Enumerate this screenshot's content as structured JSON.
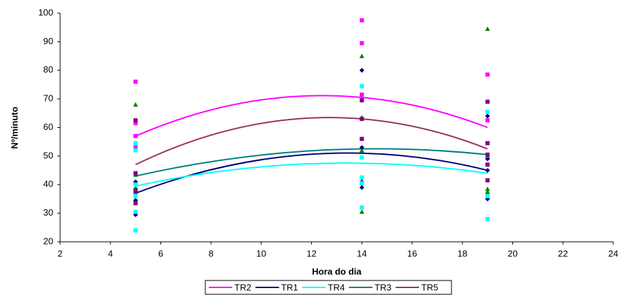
{
  "chart_data": {
    "type": "scatter",
    "x_label": "Hora do dia",
    "y_label": "Nº/minuto",
    "xlim": [
      2,
      24
    ],
    "xticks": [
      2,
      4,
      6,
      8,
      10,
      12,
      14,
      16,
      18,
      20,
      22,
      24
    ],
    "ylim": [
      20,
      100
    ],
    "yticks": [
      20,
      30,
      40,
      50,
      60,
      70,
      80,
      90,
      100
    ],
    "grid": false,
    "legend": "bottom",
    "series": [
      {
        "name": "TR2",
        "color": "#ff00ff",
        "marker": "square",
        "marker_color": "#ff00ff",
        "x": [
          5,
          5,
          5,
          5,
          14,
          14,
          14,
          19,
          19
        ],
        "values": [
          76,
          61.5,
          57,
          53,
          97.5,
          89.5,
          71.5,
          78.5,
          62.5
        ],
        "trend": {
          "x": [
            5,
            14,
            19
          ],
          "values": [
            57,
            70.5,
            60
          ]
        }
      },
      {
        "name": "TR1",
        "color": "#000080",
        "marker": "diamond",
        "marker_color": "#000080",
        "x": [
          5,
          5,
          5,
          5,
          14,
          14,
          14,
          14,
          19,
          19,
          19,
          19
        ],
        "values": [
          41,
          38.5,
          34.5,
          29.5,
          80,
          53,
          41,
          39,
          64,
          49,
          45,
          35
        ],
        "trend": {
          "x": [
            5,
            14,
            19
          ],
          "values": [
            37,
            51,
            45
          ]
        }
      },
      {
        "name": "TR4",
        "color": "#00ffff",
        "marker": "square",
        "marker_color": "#00ffff",
        "x": [
          5,
          5,
          5,
          5,
          5,
          5,
          14,
          14,
          14,
          14,
          14,
          19,
          19,
          19,
          19
        ],
        "values": [
          54.5,
          52,
          40,
          36,
          30.5,
          24,
          74.5,
          49.5,
          42.5,
          40.5,
          32,
          65.5,
          36.5,
          36,
          28
        ],
        "trend": {
          "x": [
            5,
            14,
            19
          ],
          "values": [
            39.5,
            47.5,
            44
          ]
        }
      },
      {
        "name": "TR3",
        "color": "#008080",
        "marker": "triangle",
        "marker_color": "#008000",
        "x": [
          5,
          5,
          5,
          14,
          14,
          14,
          14,
          19,
          19,
          19,
          19
        ],
        "values": [
          68,
          43.5,
          38.5,
          85,
          63.5,
          52,
          30.5,
          94.5,
          38.5,
          37.5,
          50
        ],
        "trend": {
          "x": [
            5,
            14,
            19
          ],
          "values": [
            43,
            52.5,
            50.5
          ]
        }
      },
      {
        "name": "TR5",
        "color": "#993366",
        "marker": "square",
        "marker_color": "#800080",
        "x": [
          5,
          5,
          5,
          5,
          14,
          14,
          14,
          19,
          19,
          19,
          19,
          19
        ],
        "values": [
          62.5,
          44,
          37.5,
          33.5,
          69.5,
          63,
          56,
          69,
          54.5,
          47,
          41.5,
          50.5
        ],
        "trend": {
          "x": [
            5,
            14,
            19
          ],
          "values": [
            47,
            63,
            52.5
          ]
        }
      }
    ]
  }
}
